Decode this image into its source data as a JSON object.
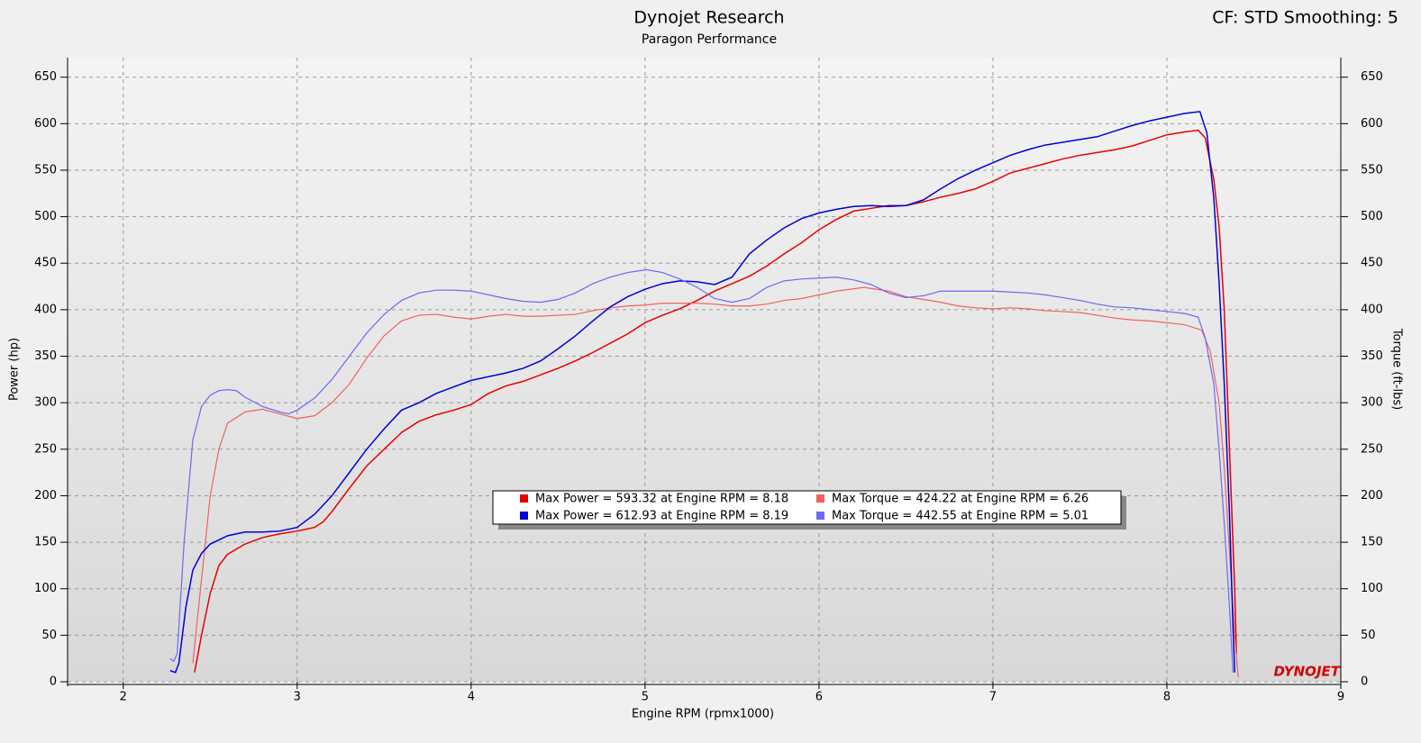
{
  "chart_data": {
    "type": "line",
    "title": "Dynojet Research",
    "subtitle": "Paragon Performance",
    "corner_text": "CF: STD Smoothing: 5",
    "watermark": "DYNOJET",
    "x_label": "Engine RPM (rpmx1000)",
    "y_label": "Power (hp)",
    "y2_label": "Torque (ft-lbs)",
    "xlim": [
      1.68,
      9
    ],
    "xticks": [
      2,
      3,
      4,
      5,
      6,
      7,
      8,
      9
    ],
    "ylim": [
      0,
      671
    ],
    "yticks": [
      0,
      50,
      100,
      150,
      200,
      250,
      300,
      350,
      400,
      450,
      500,
      550,
      600,
      650
    ],
    "y2lim": [
      0,
      671
    ],
    "y2ticks": [
      0,
      50,
      100,
      150,
      200,
      250,
      300,
      350,
      400,
      450,
      500,
      550,
      600,
      650
    ],
    "grid": true,
    "series": [
      {
        "name": "Max Power = 593.32 at Engine RPM = 8.18",
        "color": "#e60000",
        "x": [
          2.41,
          2.45,
          2.5,
          2.55,
          2.6,
          2.7,
          2.8,
          2.9,
          3.0,
          3.1,
          3.15,
          3.2,
          3.3,
          3.4,
          3.5,
          3.6,
          3.7,
          3.8,
          3.9,
          4.0,
          4.1,
          4.2,
          4.3,
          4.4,
          4.5,
          4.6,
          4.7,
          4.8,
          4.9,
          5.0,
          5.1,
          5.2,
          5.3,
          5.4,
          5.5,
          5.6,
          5.7,
          5.8,
          5.9,
          6.0,
          6.1,
          6.2,
          6.3,
          6.4,
          6.5,
          6.6,
          6.7,
          6.8,
          6.9,
          7.0,
          7.1,
          7.2,
          7.3,
          7.4,
          7.5,
          7.6,
          7.7,
          7.8,
          7.9,
          8.0,
          8.1,
          8.18,
          8.22,
          8.27,
          8.3,
          8.33,
          8.36,
          8.39,
          8.4
        ],
        "values": [
          10,
          50,
          95,
          125,
          137,
          148,
          155,
          159,
          162,
          166,
          172,
          183,
          208,
          232,
          250,
          268,
          280,
          287,
          292,
          298,
          310,
          318,
          323,
          330,
          337,
          345,
          354,
          364,
          374,
          386,
          394,
          401,
          410,
          420,
          428,
          436,
          447,
          460,
          472,
          486,
          497,
          506,
          509,
          512,
          512,
          516,
          521,
          525,
          530,
          538,
          547,
          552,
          557,
          562,
          566,
          569,
          572,
          576,
          582,
          588,
          591,
          593,
          585,
          540,
          490,
          400,
          250,
          100,
          30
        ]
      },
      {
        "name": "Max Torque = 424.22 at Engine RPM = 6.26",
        "color": "#f36060",
        "axis": "y2",
        "x": [
          2.4,
          2.45,
          2.5,
          2.55,
          2.6,
          2.7,
          2.8,
          2.9,
          3.0,
          3.1,
          3.2,
          3.3,
          3.4,
          3.5,
          3.6,
          3.7,
          3.8,
          3.9,
          4.0,
          4.1,
          4.2,
          4.3,
          4.4,
          4.5,
          4.6,
          4.7,
          4.8,
          4.9,
          5.0,
          5.1,
          5.2,
          5.3,
          5.4,
          5.5,
          5.6,
          5.7,
          5.8,
          5.9,
          6.0,
          6.1,
          6.26,
          6.4,
          6.5,
          6.6,
          6.7,
          6.8,
          6.9,
          7.0,
          7.1,
          7.2,
          7.3,
          7.4,
          7.5,
          7.6,
          7.7,
          7.8,
          7.9,
          8.0,
          8.1,
          8.2,
          8.25,
          8.3,
          8.33,
          8.36,
          8.39,
          8.41
        ],
        "values": [
          20,
          110,
          200,
          250,
          278,
          290,
          293,
          288,
          283,
          286,
          300,
          320,
          348,
          372,
          388,
          394,
          395,
          392,
          390,
          393,
          395,
          393,
          393,
          394,
          395,
          399,
          402,
          404,
          405,
          407,
          407,
          407,
          406,
          404,
          404,
          406,
          410,
          412,
          416,
          420,
          424,
          420,
          414,
          411,
          408,
          404,
          402,
          401,
          402,
          401,
          399,
          398,
          397,
          394,
          391,
          389,
          388,
          386,
          384,
          378,
          355,
          300,
          230,
          140,
          50,
          5
        ]
      },
      {
        "name": "Max Power = 612.93 at Engine RPM = 8.19",
        "color": "#0000d8",
        "x": [
          2.27,
          2.3,
          2.32,
          2.36,
          2.4,
          2.45,
          2.5,
          2.6,
          2.7,
          2.8,
          2.9,
          3.0,
          3.1,
          3.2,
          3.3,
          3.4,
          3.5,
          3.6,
          3.7,
          3.8,
          3.9,
          4.0,
          4.1,
          4.2,
          4.3,
          4.4,
          4.5,
          4.6,
          4.7,
          4.8,
          4.9,
          5.0,
          5.1,
          5.2,
          5.3,
          5.4,
          5.5,
          5.6,
          5.7,
          5.8,
          5.9,
          6.0,
          6.1,
          6.2,
          6.3,
          6.4,
          6.5,
          6.6,
          6.7,
          6.8,
          6.9,
          7.0,
          7.1,
          7.2,
          7.3,
          7.4,
          7.5,
          7.6,
          7.7,
          7.8,
          7.9,
          8.0,
          8.1,
          8.19,
          8.23,
          8.27,
          8.3,
          8.33,
          8.36,
          8.38,
          8.39
        ],
        "values": [
          12,
          10,
          20,
          80,
          120,
          138,
          148,
          157,
          161,
          161,
          162,
          166,
          180,
          200,
          225,
          250,
          272,
          292,
          300,
          310,
          317,
          324,
          328,
          332,
          337,
          345,
          358,
          372,
          388,
          403,
          414,
          422,
          428,
          431,
          430,
          427,
          435,
          460,
          475,
          488,
          498,
          504,
          508,
          511,
          512,
          511,
          512,
          518,
          530,
          541,
          550,
          558,
          566,
          572,
          577,
          580,
          583,
          586,
          592,
          598,
          603,
          607,
          611,
          613,
          590,
          520,
          430,
          320,
          180,
          60,
          10
        ]
      },
      {
        "name": "Max Torque = 442.55 at Engine RPM = 5.01",
        "color": "#6a6af5",
        "axis": "y2",
        "x": [
          2.27,
          2.29,
          2.31,
          2.35,
          2.4,
          2.45,
          2.5,
          2.55,
          2.6,
          2.65,
          2.7,
          2.8,
          2.9,
          2.95,
          3.0,
          3.1,
          3.2,
          3.3,
          3.4,
          3.5,
          3.6,
          3.7,
          3.8,
          3.9,
          4.0,
          4.1,
          4.2,
          4.3,
          4.4,
          4.5,
          4.6,
          4.7,
          4.8,
          4.9,
          5.01,
          5.1,
          5.2,
          5.3,
          5.4,
          5.5,
          5.6,
          5.7,
          5.8,
          5.9,
          6.0,
          6.1,
          6.2,
          6.3,
          6.4,
          6.5,
          6.6,
          6.7,
          6.8,
          6.9,
          7.0,
          7.1,
          7.2,
          7.3,
          7.4,
          7.5,
          7.6,
          7.7,
          7.8,
          7.9,
          8.0,
          8.1,
          8.18,
          8.22,
          8.27,
          8.3,
          8.33,
          8.36,
          8.38
        ],
        "values": [
          25,
          22,
          30,
          150,
          260,
          296,
          308,
          313,
          314,
          313,
          306,
          296,
          290,
          288,
          292,
          305,
          325,
          350,
          375,
          395,
          410,
          418,
          421,
          421,
          420,
          416,
          412,
          409,
          408,
          411,
          418,
          428,
          435,
          440,
          443,
          440,
          433,
          424,
          412,
          408,
          412,
          424,
          431,
          433,
          434,
          435,
          432,
          427,
          418,
          413,
          415,
          420,
          420,
          420,
          420,
          419,
          418,
          416,
          413,
          410,
          406,
          403,
          402,
          400,
          398,
          396,
          392,
          370,
          320,
          250,
          170,
          80,
          10
        ]
      }
    ]
  }
}
